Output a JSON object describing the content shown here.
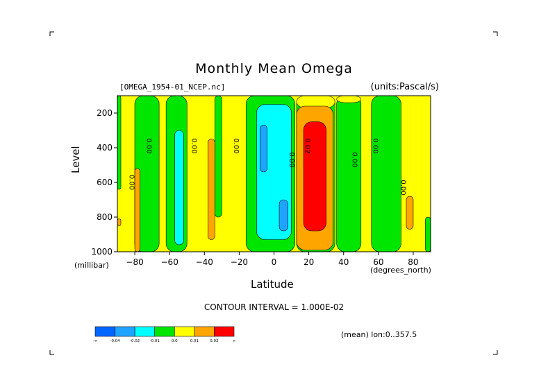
{
  "chart_data": {
    "type": "heatmap",
    "title": "Monthly Mean Omega",
    "subtitle_left": "[OMEGA_1954-01_NCEP.nc]",
    "subtitle_right": "(units:Pascal/s)",
    "xlabel": "Latitude",
    "ylabel": "Level",
    "x_units": "(degrees_north)",
    "y_units": "(millibar)",
    "xlim": [
      -90,
      90
    ],
    "ylim": [
      1000,
      100
    ],
    "x_ticks": [
      -80,
      -60,
      -40,
      -20,
      0,
      20,
      40,
      60,
      80
    ],
    "y_ticks": [
      200,
      400,
      600,
      800,
      1000
    ],
    "contour_interval_text": "CONTOUR INTERVAL = 1.000E-02",
    "mean_text": "(mean) lon:0..357.5",
    "colorbar": {
      "labels": [
        "-∞",
        "-0.04",
        "-0.02",
        "-0.01",
        "0.0",
        "0.01",
        "0.02",
        "∞"
      ],
      "colors": [
        "#0066ff",
        "#1ea4ff",
        "#00ffff",
        "#00e600",
        "#ffff00",
        "#ffa500",
        "#ff0000"
      ]
    },
    "contour_labels": [
      {
        "text": "0.00",
        "x": -83,
        "y": 600
      },
      {
        "text": "0.00",
        "x": -73,
        "y": 390
      },
      {
        "text": "0.00",
        "x": -47,
        "y": 390
      },
      {
        "text": "0.00",
        "x": -23,
        "y": 390
      },
      {
        "text": "0.00",
        "x": 9,
        "y": 470
      },
      {
        "text": "0.02",
        "x": 18,
        "y": 390
      },
      {
        "text": "0.00",
        "x": 45,
        "y": 470
      },
      {
        "text": "0.00",
        "x": 57,
        "y": 390
      },
      {
        "text": "0.00",
        "x": 73,
        "y": 630
      }
    ],
    "regions": [
      {
        "level": 4,
        "x0": -90,
        "x1": 90,
        "y0": 100,
        "y1": 1000
      },
      {
        "level": 3,
        "x0": -90,
        "x1": -88,
        "y0": 100,
        "y1": 640
      },
      {
        "level": 3,
        "x0": -80,
        "x1": -66,
        "y0": 100,
        "y1": 1000
      },
      {
        "level": 3,
        "x0": -62,
        "x1": -50,
        "y0": 100,
        "y1": 1000
      },
      {
        "level": 3,
        "x0": -34,
        "x1": -30,
        "y0": 100,
        "y1": 800
      },
      {
        "level": 3,
        "x0": -16,
        "x1": 12,
        "y0": 100,
        "y1": 1000
      },
      {
        "level": 3,
        "x0": 13,
        "x1": 35,
        "y0": 100,
        "y1": 1000
      },
      {
        "level": 3,
        "x0": 36,
        "x1": 50,
        "y0": 100,
        "y1": 1000
      },
      {
        "level": 3,
        "x0": 56,
        "x1": 73,
        "y0": 100,
        "y1": 1000
      },
      {
        "level": 3,
        "x0": 87,
        "x1": 90,
        "y0": 800,
        "y1": 1000
      },
      {
        "level": 2,
        "x0": -10,
        "x1": 10,
        "y0": 150,
        "y1": 930
      },
      {
        "level": 2,
        "x0": -57,
        "x1": -52,
        "y0": 300,
        "y1": 960
      },
      {
        "level": 1,
        "x0": -8,
        "x1": -4,
        "y0": 270,
        "y1": 540
      },
      {
        "level": 1,
        "x0": 3,
        "x1": 8,
        "y0": 700,
        "y1": 880
      },
      {
        "level": 4,
        "x0": 13,
        "x1": 35,
        "y0": 100,
        "y1": 170
      },
      {
        "level": 4,
        "x0": 36,
        "x1": 50,
        "y0": 100,
        "y1": 140
      },
      {
        "level": 5,
        "x0": -80,
        "x1": -77,
        "y0": 520,
        "y1": 1000
      },
      {
        "level": 5,
        "x0": -38,
        "x1": -34,
        "y0": 350,
        "y1": 930
      },
      {
        "level": 5,
        "x0": 76,
        "x1": 80,
        "y0": 680,
        "y1": 870
      },
      {
        "level": 5,
        "x0": 13,
        "x1": 34,
        "y0": 160,
        "y1": 990
      },
      {
        "level": 6,
        "x0": 17,
        "x1": 30,
        "y0": 250,
        "y1": 880
      },
      {
        "level": 5,
        "x0": -90,
        "x1": -88,
        "y0": 810,
        "y1": 850
      }
    ]
  }
}
